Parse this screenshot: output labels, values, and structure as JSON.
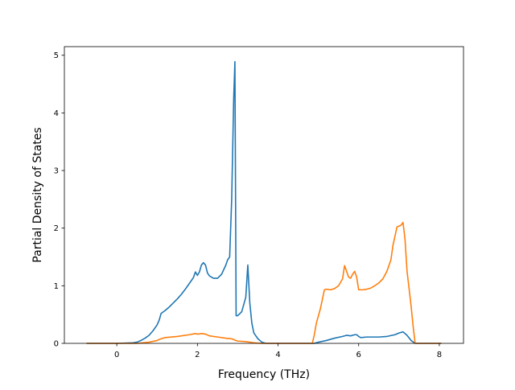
{
  "chart_data": {
    "type": "line",
    "xlabel": "Frequency (THz)",
    "ylabel": "Partial Density of States",
    "xlim": [
      -1.3,
      8.6
    ],
    "ylim": [
      0,
      5.15
    ],
    "x_ticks": [
      0,
      2,
      4,
      6,
      8
    ],
    "y_ticks": [
      0,
      1,
      2,
      3,
      4,
      5
    ],
    "x_tick_labels": [
      "0",
      "2",
      "4",
      "6",
      "8"
    ],
    "y_tick_labels": [
      "0",
      "1",
      "2",
      "3",
      "4",
      "5"
    ],
    "grid": false,
    "legend": "none",
    "series": [
      {
        "color": "#1f77b4",
        "points": [
          [
            -0.75,
            0
          ],
          [
            0.0,
            0
          ],
          [
            0.4,
            0.01
          ],
          [
            0.5,
            0.02
          ],
          [
            0.6,
            0.05
          ],
          [
            0.7,
            0.09
          ],
          [
            0.8,
            0.14
          ],
          [
            0.9,
            0.22
          ],
          [
            1.0,
            0.32
          ],
          [
            1.05,
            0.4
          ],
          [
            1.1,
            0.52
          ],
          [
            1.2,
            0.57
          ],
          [
            1.3,
            0.63
          ],
          [
            1.4,
            0.7
          ],
          [
            1.5,
            0.77
          ],
          [
            1.6,
            0.85
          ],
          [
            1.7,
            0.94
          ],
          [
            1.8,
            1.04
          ],
          [
            1.9,
            1.14
          ],
          [
            1.95,
            1.24
          ],
          [
            2.0,
            1.18
          ],
          [
            2.05,
            1.24
          ],
          [
            2.1,
            1.36
          ],
          [
            2.15,
            1.4
          ],
          [
            2.2,
            1.36
          ],
          [
            2.25,
            1.22
          ],
          [
            2.3,
            1.17
          ],
          [
            2.4,
            1.13
          ],
          [
            2.5,
            1.13
          ],
          [
            2.6,
            1.2
          ],
          [
            2.7,
            1.35
          ],
          [
            2.75,
            1.45
          ],
          [
            2.8,
            1.5
          ],
          [
            2.85,
            2.5
          ],
          [
            2.9,
            4.25
          ],
          [
            2.93,
            4.89
          ],
          [
            2.96,
            0.48
          ],
          [
            3.0,
            0.48
          ],
          [
            3.1,
            0.55
          ],
          [
            3.2,
            0.8
          ],
          [
            3.25,
            1.36
          ],
          [
            3.3,
            0.7
          ],
          [
            3.35,
            0.35
          ],
          [
            3.4,
            0.18
          ],
          [
            3.5,
            0.08
          ],
          [
            3.6,
            0.02
          ],
          [
            3.7,
            0
          ],
          [
            4.9,
            0
          ],
          [
            5.0,
            0.02
          ],
          [
            5.2,
            0.05
          ],
          [
            5.4,
            0.09
          ],
          [
            5.6,
            0.12
          ],
          [
            5.7,
            0.14
          ],
          [
            5.8,
            0.13
          ],
          [
            5.9,
            0.15
          ],
          [
            5.95,
            0.15
          ],
          [
            6.0,
            0.12
          ],
          [
            6.05,
            0.1
          ],
          [
            6.2,
            0.11
          ],
          [
            6.5,
            0.11
          ],
          [
            6.7,
            0.12
          ],
          [
            6.9,
            0.15
          ],
          [
            7.0,
            0.18
          ],
          [
            7.1,
            0.2
          ],
          [
            7.2,
            0.14
          ],
          [
            7.3,
            0.05
          ],
          [
            7.4,
            0
          ],
          [
            8.05,
            0
          ]
        ]
      },
      {
        "color": "#ff7f0e",
        "points": [
          [
            -0.75,
            0
          ],
          [
            0.5,
            0
          ],
          [
            0.8,
            0.02
          ],
          [
            1.0,
            0.05
          ],
          [
            1.1,
            0.08
          ],
          [
            1.2,
            0.1
          ],
          [
            1.5,
            0.12
          ],
          [
            1.8,
            0.15
          ],
          [
            1.95,
            0.17
          ],
          [
            2.0,
            0.16
          ],
          [
            2.1,
            0.17
          ],
          [
            2.2,
            0.16
          ],
          [
            2.3,
            0.13
          ],
          [
            2.5,
            0.11
          ],
          [
            2.7,
            0.09
          ],
          [
            2.85,
            0.08
          ],
          [
            2.95,
            0.05
          ],
          [
            3.0,
            0.04
          ],
          [
            3.2,
            0.03
          ],
          [
            3.4,
            0.01
          ],
          [
            3.6,
            0
          ],
          [
            4.85,
            0
          ],
          [
            4.9,
            0.15
          ],
          [
            4.95,
            0.35
          ],
          [
            5.05,
            0.6
          ],
          [
            5.15,
            0.93
          ],
          [
            5.2,
            0.94
          ],
          [
            5.3,
            0.93
          ],
          [
            5.4,
            0.95
          ],
          [
            5.5,
            1.0
          ],
          [
            5.6,
            1.12
          ],
          [
            5.65,
            1.35
          ],
          [
            5.7,
            1.25
          ],
          [
            5.75,
            1.15
          ],
          [
            5.8,
            1.13
          ],
          [
            5.85,
            1.2
          ],
          [
            5.9,
            1.25
          ],
          [
            5.95,
            1.15
          ],
          [
            6.0,
            0.93
          ],
          [
            6.1,
            0.93
          ],
          [
            6.2,
            0.94
          ],
          [
            6.3,
            0.96
          ],
          [
            6.4,
            1.0
          ],
          [
            6.5,
            1.05
          ],
          [
            6.6,
            1.12
          ],
          [
            6.7,
            1.25
          ],
          [
            6.8,
            1.45
          ],
          [
            6.85,
            1.7
          ],
          [
            6.95,
            2.02
          ],
          [
            7.05,
            2.05
          ],
          [
            7.1,
            2.1
          ],
          [
            7.15,
            1.8
          ],
          [
            7.2,
            1.25
          ],
          [
            7.3,
            0.65
          ],
          [
            7.35,
            0.3
          ],
          [
            7.4,
            0
          ],
          [
            8.05,
            0
          ]
        ]
      }
    ]
  }
}
